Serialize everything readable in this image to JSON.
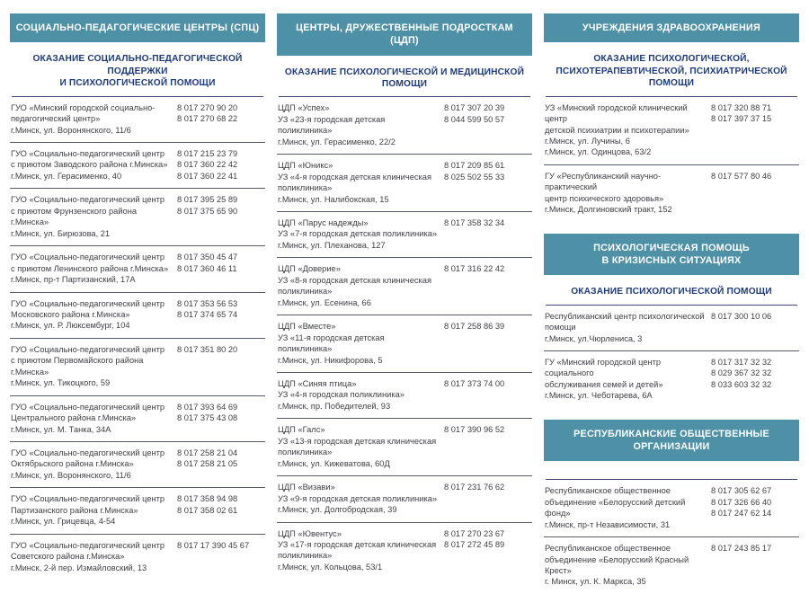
{
  "colors": {
    "header_bg": "#4E90A6",
    "header_text": "#FFFFFF",
    "subheader_text": "#1F3B77",
    "body_text": "#3E3F47",
    "divider": "#555A6E"
  },
  "columns": [
    {
      "name": "social-pedagogical-centers",
      "sections": [
        {
          "header": [
            "СОЦИАЛЬНО-ПЕДАГОГИЧЕСКИЕ ЦЕНТРЫ (СПЦ)"
          ],
          "subheader": [
            "ОКАЗАНИЕ СОЦИАЛЬНО-ПЕДАГОГИЧЕСКОЙ",
            "ПОДДЕРЖКИ",
            "И ПСИХОЛОГИЧЕСКОЙ ПОМОЩИ"
          ],
          "entries": [
            {
              "lines": [
                "ГУО «Минский городской социально-",
                "педагогический центр»",
                "г.Минск, ул. Воронянского, 11/6"
              ],
              "phones": [
                "8 017 270 90 20",
                "8 017 270 68 22"
              ]
            },
            {
              "lines": [
                "ГУО «Социально-педагогический центр",
                "с приютом Заводского района г.Минска»",
                "г.Минск, ул. Герасименко, 40"
              ],
              "phones": [
                "8 017 215 23 79",
                "8 017 360 22 42",
                "8 017 360 22 41"
              ]
            },
            {
              "lines": [
                "ГУО «Социально-педагогический центр",
                "с приютом Фрунзенского района г.Минска»",
                "г.Минск, ул. Бирюзова, 21"
              ],
              "phones": [
                "8 017 395 25 89",
                "8 017 375 65 90"
              ]
            },
            {
              "lines": [
                "ГУО «Социально-педагогический центр",
                "с приютом Ленинского района г.Минска»",
                "г.Минск, пр-т Партизанский, 17А"
              ],
              "phones": [
                "8 017 350 45 47",
                "8 017 360 46 11"
              ]
            },
            {
              "lines": [
                "ГУО «Социально-педагогический центр",
                "Московского района г.Минска»",
                "г.Минск, ул. Р. Люксембург, 104"
              ],
              "phones": [
                "8 017 353 56 53",
                "8 017 374 65 74"
              ]
            },
            {
              "lines": [
                "ГУО «Социально-педагогический центр",
                "с приютом Первомайского района г.Минска»",
                "г.Минск, ул. Тикоцкого, 59"
              ],
              "phones": [
                "8 017 351 80 20"
              ]
            },
            {
              "lines": [
                "ГУО «Социально-педагогический центр",
                "Центрального района г.Минска»",
                "г.Минск, ул. М. Танка, 34А"
              ],
              "phones": [
                "8 017 393 64 69",
                "8 017 375 43 08"
              ]
            },
            {
              "lines": [
                "ГУО «Социально-педагогический центр",
                "Октябрьского района г.Минска»",
                "г.Минск, ул. Воронянского, 11/6"
              ],
              "phones": [
                "8 017 258 21 04",
                "8 017 258 21 05"
              ]
            },
            {
              "lines": [
                "ГУО «Социально-педагогический центр",
                "Партизанского района г.Минска»",
                "г.Минск, ул. Грицевца, 4-54"
              ],
              "phones": [
                "8 017 358 94 98",
                "8 017 358 02 61"
              ]
            },
            {
              "lines": [
                "ГУО «Социально-педагогический центр",
                "Советского района г.Минска»",
                "г.Минск, 2-й пер. Измайловский, 13"
              ],
              "phones": [
                "8 017 17 390 45 67"
              ]
            }
          ]
        }
      ]
    },
    {
      "name": "teen-friendly-centers",
      "sections": [
        {
          "header": [
            "ЦЕНТРЫ, ДРУЖЕСТВЕННЫЕ ПОДРОСТКАМ (ЦДП)"
          ],
          "subheader": [
            "ОКАЗАНИЕ ПСИХОЛОГИЧЕСКОЙ И МЕДИЦИНСКОЙ",
            "ПОМОЩИ"
          ],
          "entries": [
            {
              "lines": [
                "ЦДП «Успех»",
                "УЗ «23-я городская детская поликлиника»",
                "г.Минск, ул. Герасименко, 22/2"
              ],
              "phones": [
                "8 017 307 20 39",
                "8 044 599 50 57"
              ]
            },
            {
              "lines": [
                "ЦДП «Юникс»",
                "УЗ «4-я городская детская клиническая",
                "поликлиника»",
                "г.Минск, ул. Налибокская, 15"
              ],
              "phones": [
                "8 017 209 85 61",
                "8 025 502 55 33"
              ]
            },
            {
              "lines": [
                "ЦДП «Парус надежды»",
                "УЗ «7-я городская детская поликлиника»",
                "г.Минск, ул. Плеханова, 127"
              ],
              "phones": [
                "8 017 358 32 34"
              ]
            },
            {
              "lines": [
                "ЦДП «Доверие»",
                "УЗ «8-я городская детская клиническая",
                "поликлиника»",
                "г.Минск, ул. Есенина, 66"
              ],
              "phones": [
                "8 017 316 22 42"
              ]
            },
            {
              "lines": [
                "ЦДП «Вместе»",
                "УЗ «11-я городская детская поликлиника»",
                "г.Минск, ул. Никифорова, 5"
              ],
              "phones": [
                "8 017 258 86 39"
              ]
            },
            {
              "lines": [
                "ЦДП «Синяя птица»",
                "УЗ «4-я городская поликлиника»",
                "г.Минск, пр. Победителей, 93"
              ],
              "phones": [
                "8 017 373 74 00"
              ]
            },
            {
              "lines": [
                "ЦДП «Галс»",
                "УЗ «13-я городская детская клиническая",
                "поликлиника»",
                "г.Минск, ул. Кижеватова, 60Д"
              ],
              "phones": [
                "8 017 390 96 52"
              ]
            },
            {
              "lines": [
                "ЦДП «Визави»",
                "УЗ «9-я городская детская поликлиника»",
                "г.Минск, ул. Долгобродская, 39"
              ],
              "phones": [
                "8 017 231 76 62"
              ]
            },
            {
              "lines": [
                "ЦДП «Ювентус»",
                "УЗ «17-я городская детская клиническая",
                "поликлиника»",
                "г.Минск, ул. Кольцова, 53/1"
              ],
              "phones": [
                "8 017 270 23 67",
                "8 017 272 45 89"
              ]
            }
          ]
        }
      ]
    },
    {
      "name": "healthcare-institutions",
      "sections": [
        {
          "header": [
            "УЧРЕЖДЕНИЯ ЗДРАВООХРАНЕНИЯ"
          ],
          "subheader": [
            "ОКАЗАНИЕ ПСИХОЛОГИЧЕСКОЙ,",
            "ПСИХОТЕРАПЕВТИЧЕСКОЙ, ПСИХИАТРИЧЕСКОЙ",
            "ПОМОЩИ"
          ],
          "entries": [
            {
              "lines": [
                "УЗ «Минский городской клинический центр",
                "детской психиатрии и психотерапии»",
                "г.Минск, ул. Лучины, 6",
                "г.Минск, ул. Одинцова, 63/2"
              ],
              "phones": [
                "8 017 320 88 71",
                "8 017 397 37 15"
              ]
            },
            {
              "lines": [
                "ГУ «Республиканский научно-практический",
                "центр психического здоровья»",
                "г.Минск, Долгиновский тракт, 152"
              ],
              "phones": [
                "8 017 577 80 46"
              ]
            }
          ]
        },
        {
          "header": [
            "ПСИХОЛОГИЧЕСКАЯ ПОМОЩЬ",
            "В КРИЗИСНЫХ СИТУАЦИЯХ"
          ],
          "subheader": [
            "ОКАЗАНИЕ ПСИХОЛОГИЧЕСКОЙ ПОМОЩИ"
          ],
          "entries": [
            {
              "lines": [
                "Республиканский центр психологической",
                "помощи",
                "г.Минск, ул.Чюрлениса, 3"
              ],
              "phones": [
                "8 017 300 10 06"
              ]
            },
            {
              "lines": [
                "ГУ «Минский городской центр социального",
                "обслуживания семей и детей»",
                "г.Минск, ул. Чеботарева, 6А"
              ],
              "phones": [
                "8 017 317 32 32",
                "8 029 367 32 32",
                "8 033 603 32 32"
              ]
            }
          ]
        },
        {
          "header": [
            "РЕСПУБЛИКАНСКИЕ ОБЩЕСТВЕННЫЕ",
            "ОРГАНИЗАЦИИ"
          ],
          "subheader": [],
          "entries": [
            {
              "lines": [
                "Республиканское общественное",
                "объединение «Белорусский детский фонд»",
                "г.Минск, пр-т Независимости, 31"
              ],
              "phones": [
                "8 017 305 62 67",
                "8 017 326 66 40",
                "8 017 247 62 14"
              ]
            },
            {
              "lines": [
                "Республиканское общественное",
                "объединение «Белорусский Красный Крест»",
                "г. Минск,  ул. К. Маркса, 35"
              ],
              "phones": [
                "8 017 243 85 17"
              ]
            }
          ]
        }
      ]
    }
  ]
}
